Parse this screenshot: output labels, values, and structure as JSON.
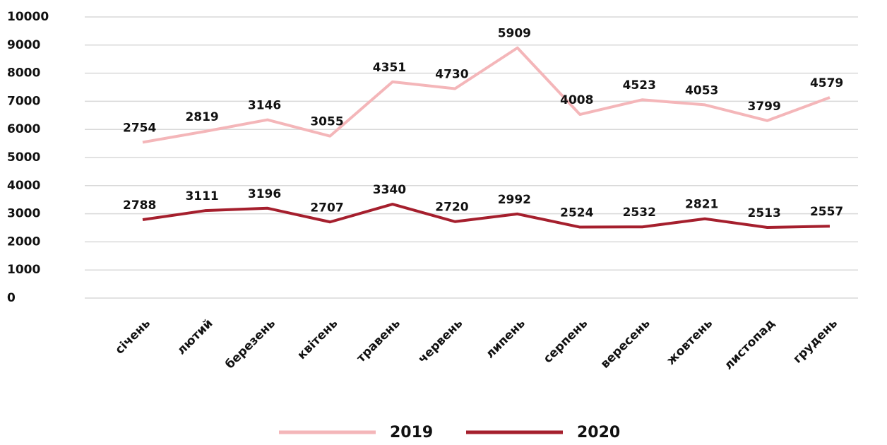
{
  "chart_data": {
    "type": "line",
    "stacked": true,
    "categories": [
      "січень",
      "лютий",
      "березень",
      "квітень",
      "травень",
      "червень",
      "липень",
      "серпень",
      "вересень",
      "жовтень",
      "листопад",
      "грудень"
    ],
    "series": [
      {
        "name": "2020",
        "color": "#a51f2d",
        "values": [
          2788,
          3111,
          3196,
          2707,
          3340,
          2720,
          2992,
          2524,
          2532,
          2821,
          2513,
          2557
        ]
      },
      {
        "name": "2019",
        "color": "#f4b6b9",
        "values": [
          2754,
          2819,
          3146,
          3055,
          4351,
          4730,
          5909,
          4008,
          4523,
          4053,
          3799,
          4579
        ]
      }
    ],
    "ylim": [
      0,
      10000
    ],
    "yticks": [
      0,
      1000,
      2000,
      3000,
      4000,
      5000,
      6000,
      7000,
      8000,
      9000,
      10000
    ],
    "grid": true,
    "legend": "bottom"
  }
}
